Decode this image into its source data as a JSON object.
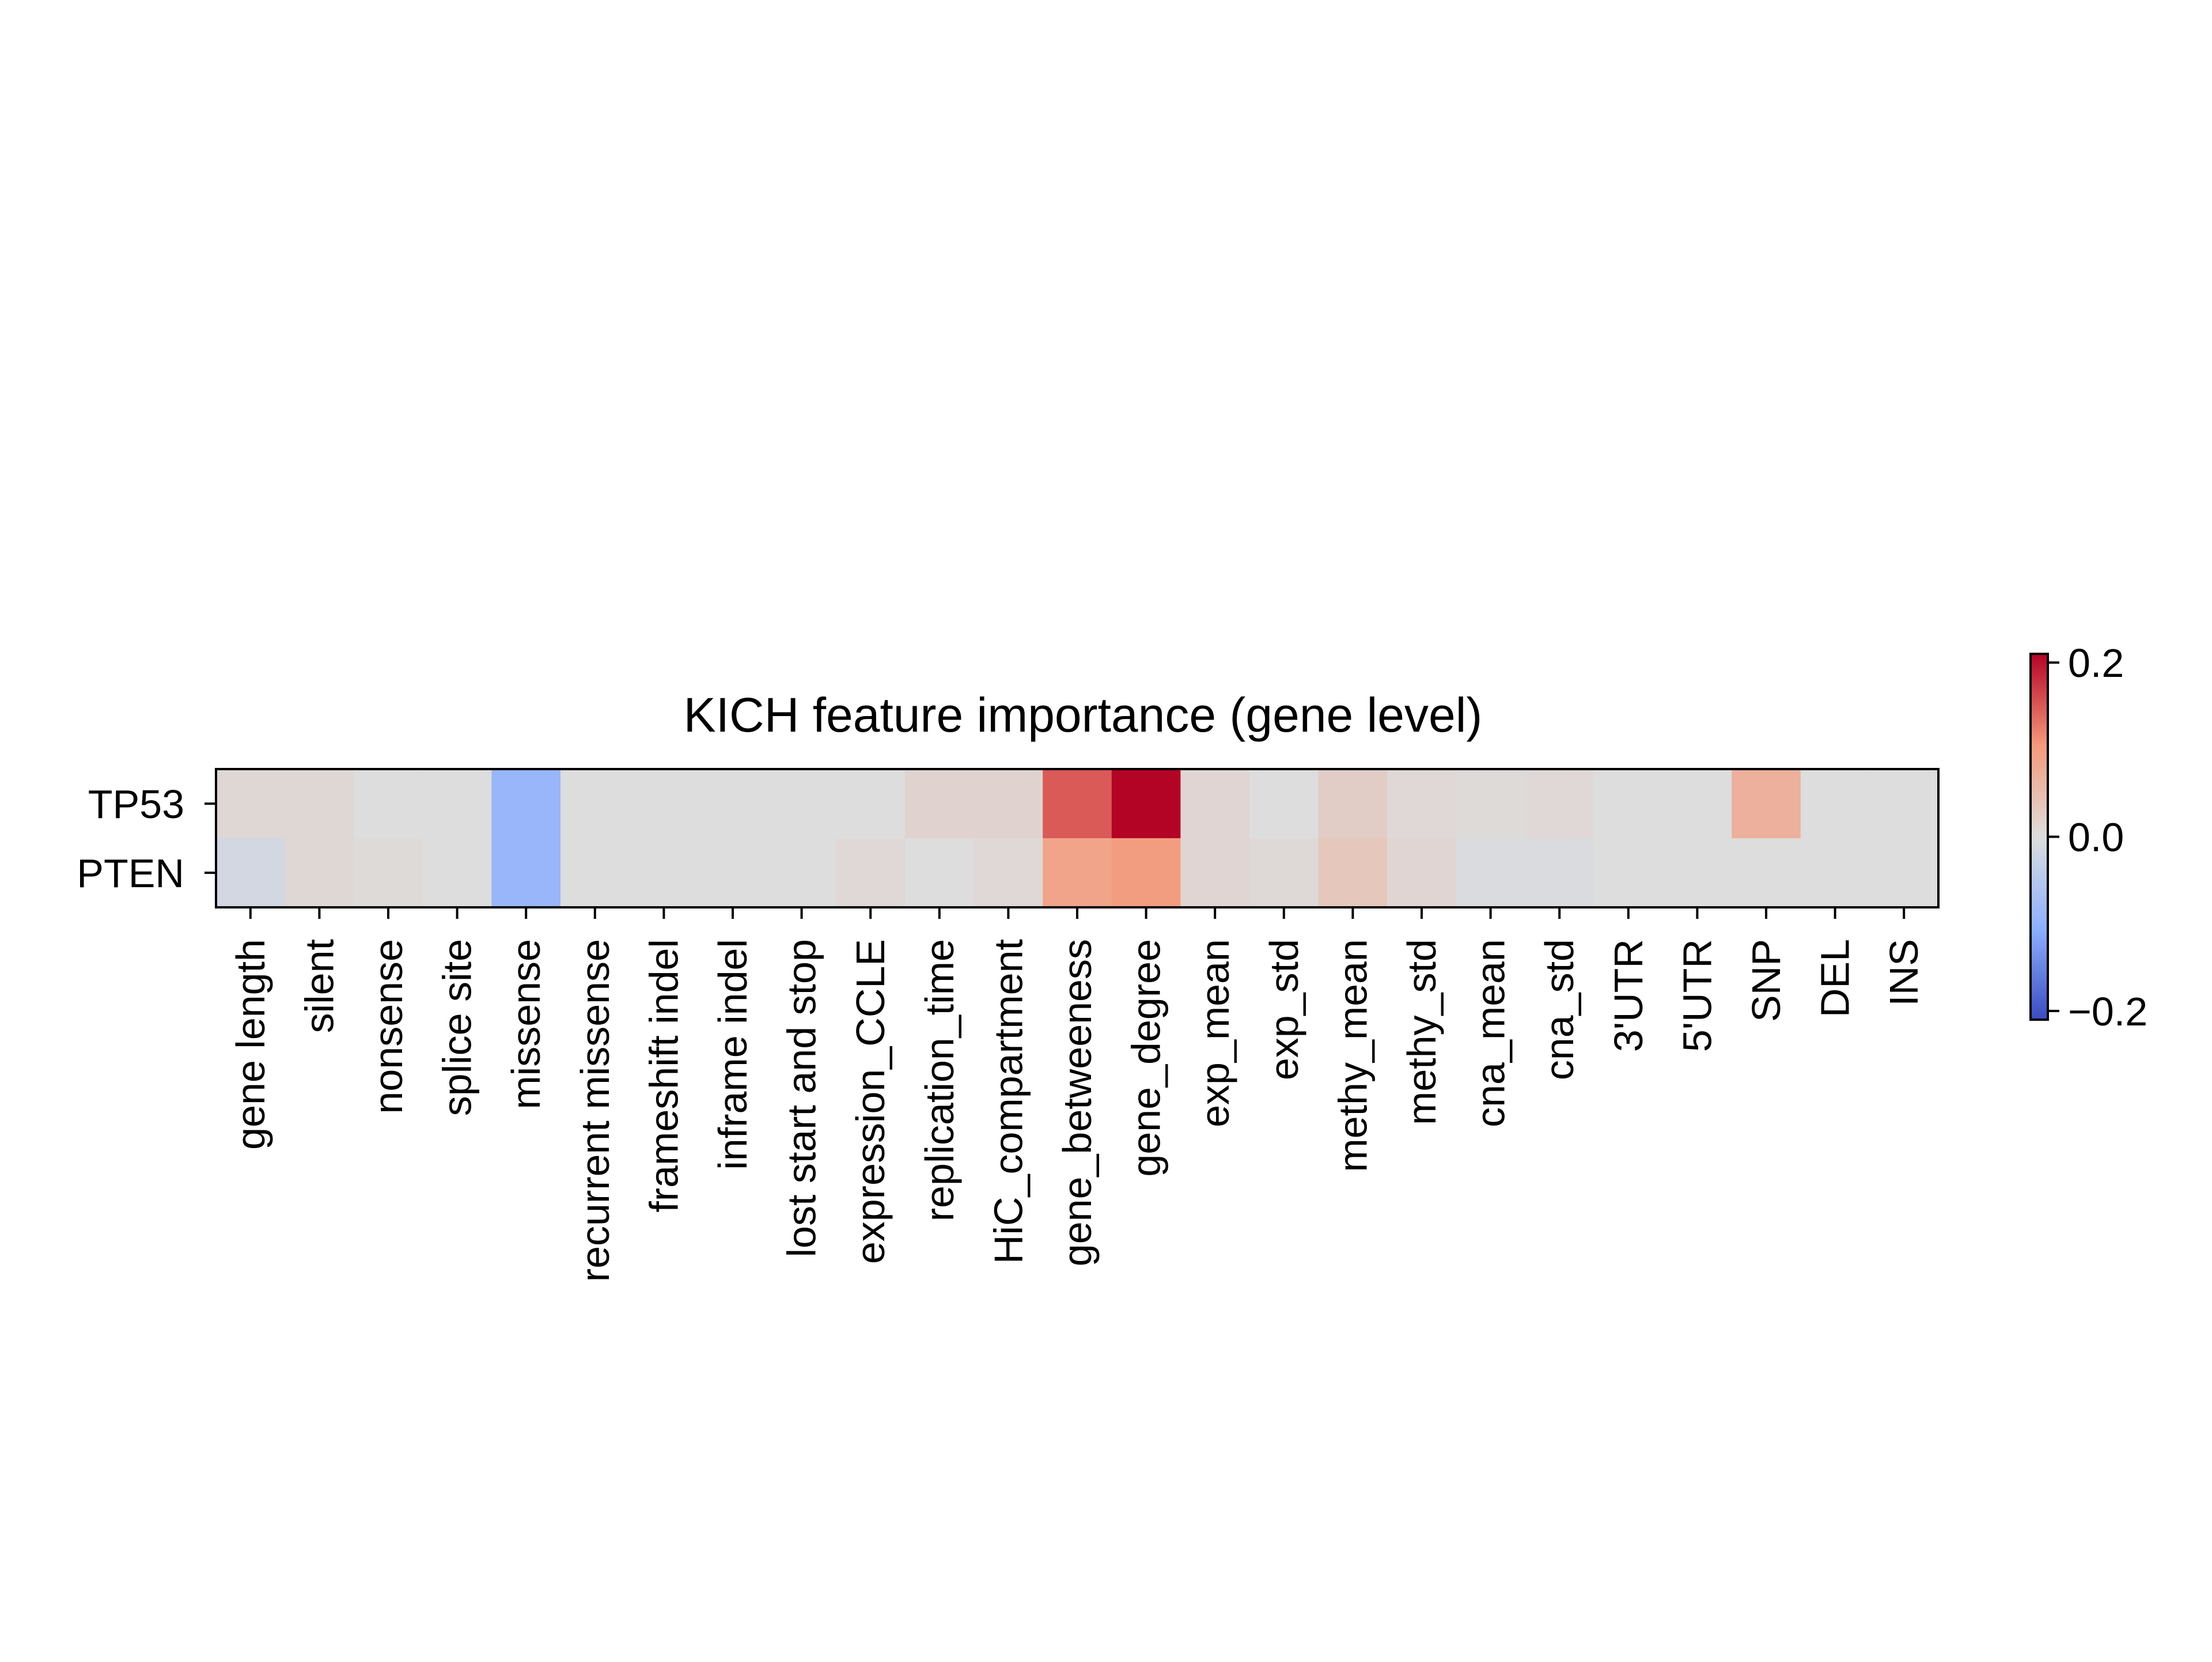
{
  "chart_data": {
    "type": "heatmap",
    "title": "KICH feature importance (gene level)",
    "xlabel": "",
    "ylabel": "",
    "rows": [
      "TP53",
      "PTEN"
    ],
    "columns": [
      "gene length",
      "silent",
      "nonsense",
      "splice site",
      "missense",
      "recurrent missense",
      "frameshift indel",
      "inframe indel",
      "lost start and stop",
      "expression_CCLE",
      "replication_time",
      "HiC_compartment",
      "gene_betweeness",
      "gene_degree",
      "exp_mean",
      "exp_std",
      "methy_mean",
      "methy_std",
      "cna_mean",
      "cna_std",
      "3'UTR",
      "5'UTR",
      "SNP",
      "DEL",
      "INS"
    ],
    "values": [
      [
        0.01,
        0.01,
        0.0,
        0.0,
        -0.09,
        0.0,
        0.0,
        0.0,
        0.0,
        0.0,
        0.015,
        0.015,
        0.15,
        0.22,
        0.012,
        0.0,
        0.025,
        0.008,
        0.005,
        0.008,
        0.0,
        0.0,
        0.07,
        0.0,
        0.0
      ],
      [
        -0.015,
        0.01,
        0.005,
        0.0,
        -0.09,
        0.0,
        0.0,
        0.0,
        0.0,
        0.008,
        0.0,
        0.008,
        0.09,
        0.1,
        0.012,
        0.006,
        0.035,
        0.012,
        -0.004,
        -0.004,
        0.0,
        0.0,
        0.0,
        0.0,
        0.0
      ]
    ],
    "colormap": "coolwarm",
    "vmin": -0.21,
    "vmax": 0.21,
    "colorbar": {
      "ticks": [
        0.2,
        0.0,
        -0.2
      ],
      "tick_labels": [
        "0.2",
        "0.0",
        "−0.2"
      ]
    },
    "grid": false,
    "legend": "colorbar-right"
  }
}
